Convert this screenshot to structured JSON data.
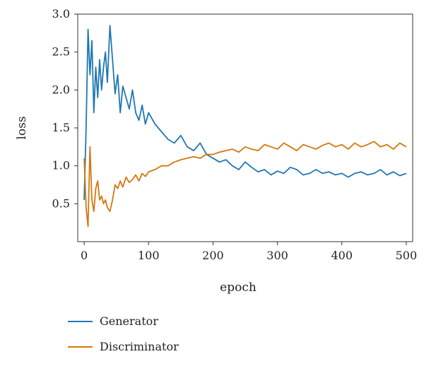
{
  "chart_data": {
    "type": "line",
    "title": "",
    "xlabel": "epoch",
    "ylabel": "loss",
    "xlim": [
      -10,
      510
    ],
    "ylim": [
      0.0,
      3.0
    ],
    "xticks": [
      0,
      100,
      200,
      300,
      400,
      500
    ],
    "xtick_labels": [
      "0",
      "100",
      "200",
      "300",
      "400",
      "500"
    ],
    "yticks": [
      0.5,
      1.0,
      1.5,
      2.0,
      2.5,
      3.0
    ],
    "ytick_labels": [
      "0.5",
      "1.0",
      "1.5",
      "2.0",
      "2.5",
      "3.0"
    ],
    "grid": false,
    "legend_position": "below-left",
    "series": [
      {
        "name": "Generator",
        "color": "#1f77b4",
        "x": [
          0,
          3,
          6,
          9,
          12,
          15,
          18,
          21,
          24,
          27,
          30,
          33,
          36,
          40,
          44,
          48,
          52,
          56,
          60,
          65,
          70,
          75,
          80,
          85,
          90,
          95,
          100,
          110,
          120,
          130,
          140,
          150,
          160,
          170,
          180,
          190,
          200,
          210,
          220,
          230,
          240,
          250,
          260,
          270,
          280,
          290,
          300,
          310,
          320,
          330,
          340,
          350,
          360,
          370,
          380,
          390,
          400,
          410,
          420,
          430,
          440,
          450,
          460,
          470,
          480,
          490,
          500
        ],
        "y": [
          0.55,
          1.5,
          2.8,
          2.2,
          2.65,
          1.7,
          2.3,
          1.9,
          2.4,
          2.0,
          2.3,
          2.5,
          2.1,
          2.85,
          2.4,
          1.95,
          2.2,
          1.7,
          2.05,
          1.9,
          1.75,
          2.0,
          1.7,
          1.6,
          1.8,
          1.55,
          1.7,
          1.55,
          1.45,
          1.35,
          1.3,
          1.4,
          1.25,
          1.2,
          1.3,
          1.15,
          1.1,
          1.05,
          1.08,
          1.0,
          0.95,
          1.05,
          0.98,
          0.92,
          0.95,
          0.88,
          0.93,
          0.9,
          0.98,
          0.95,
          0.88,
          0.9,
          0.95,
          0.9,
          0.92,
          0.88,
          0.9,
          0.85,
          0.9,
          0.92,
          0.88,
          0.9,
          0.95,
          0.88,
          0.92,
          0.87,
          0.9
        ]
      },
      {
        "name": "Discriminator",
        "color": "#d4770e",
        "x": [
          0,
          3,
          6,
          9,
          12,
          15,
          18,
          21,
          24,
          27,
          30,
          33,
          36,
          40,
          44,
          48,
          52,
          56,
          60,
          65,
          70,
          75,
          80,
          85,
          90,
          95,
          100,
          110,
          120,
          130,
          140,
          150,
          160,
          170,
          180,
          190,
          200,
          210,
          220,
          230,
          240,
          250,
          260,
          270,
          280,
          290,
          300,
          310,
          320,
          330,
          340,
          350,
          360,
          370,
          380,
          390,
          400,
          410,
          420,
          430,
          440,
          450,
          460,
          470,
          480,
          490,
          500
        ],
        "y": [
          1.1,
          0.45,
          0.2,
          1.25,
          0.55,
          0.4,
          0.7,
          0.8,
          0.55,
          0.6,
          0.5,
          0.55,
          0.45,
          0.4,
          0.55,
          0.75,
          0.7,
          0.8,
          0.72,
          0.85,
          0.78,
          0.82,
          0.88,
          0.8,
          0.9,
          0.86,
          0.92,
          0.95,
          1.0,
          1.0,
          1.05,
          1.08,
          1.1,
          1.12,
          1.1,
          1.15,
          1.15,
          1.18,
          1.2,
          1.22,
          1.18,
          1.25,
          1.22,
          1.2,
          1.28,
          1.25,
          1.22,
          1.3,
          1.25,
          1.2,
          1.28,
          1.25,
          1.22,
          1.27,
          1.3,
          1.25,
          1.28,
          1.22,
          1.3,
          1.25,
          1.28,
          1.32,
          1.25,
          1.28,
          1.22,
          1.3,
          1.25
        ]
      }
    ]
  }
}
